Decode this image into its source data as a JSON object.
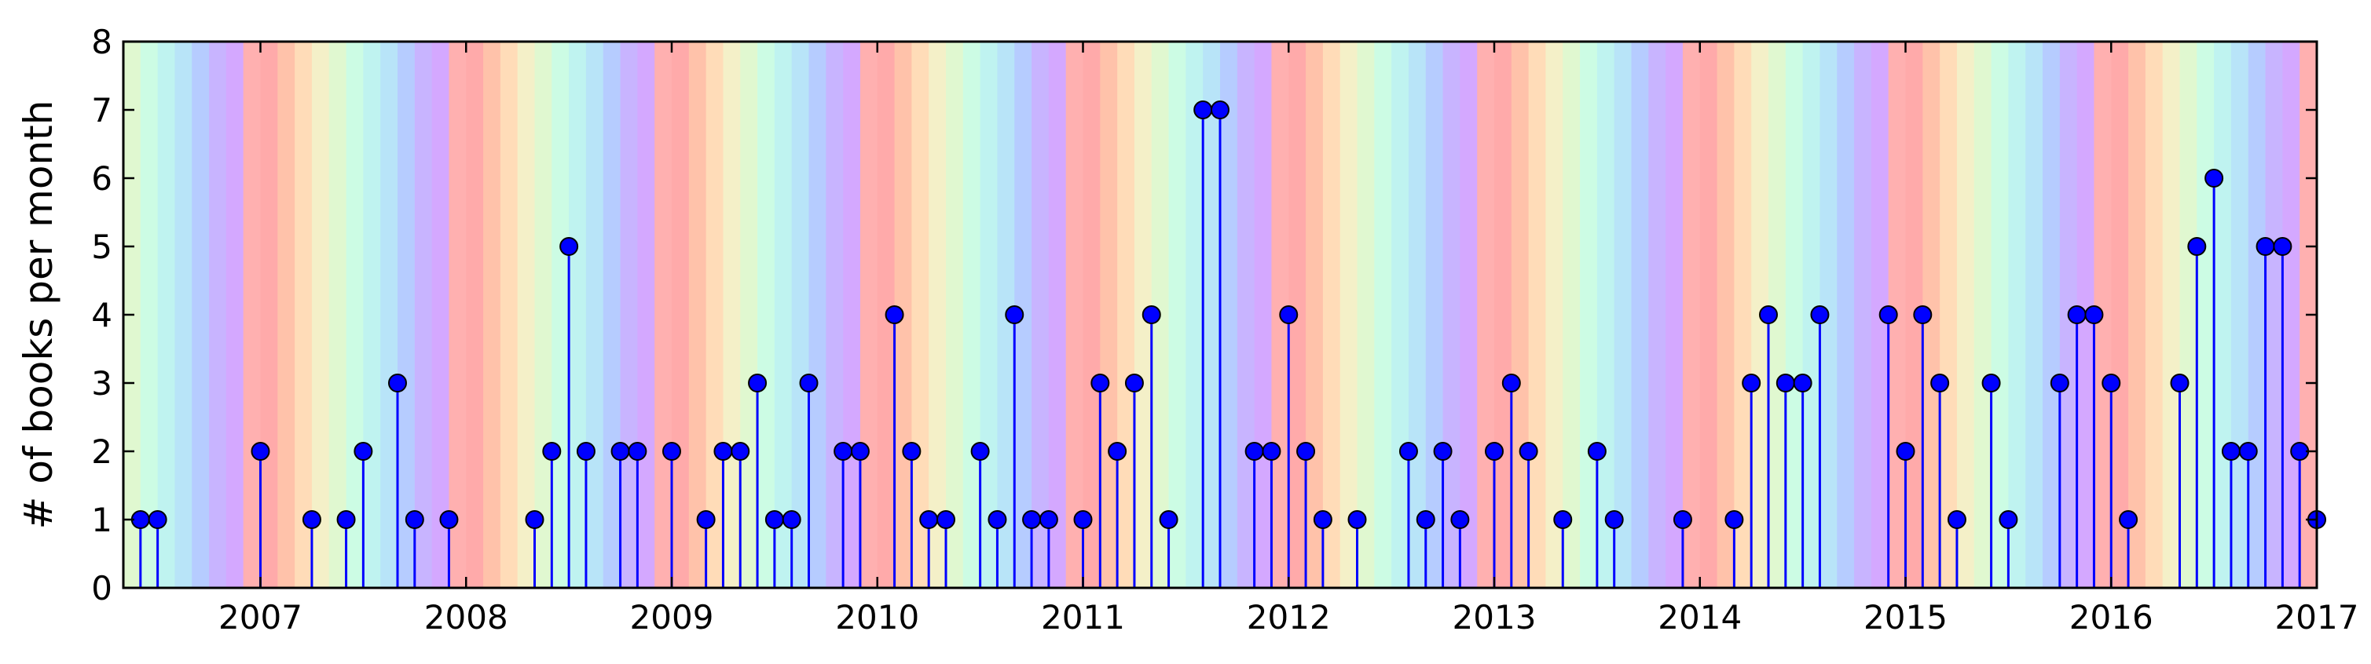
{
  "chart_data": {
    "type": "stem",
    "title": "",
    "xlabel": "",
    "ylabel": "# of books per month",
    "xlim": [
      "2006-05-01",
      "2017-01-01"
    ],
    "ylim": [
      0,
      8
    ],
    "grid": false,
    "x_tick_labels": [
      "2007",
      "2008",
      "2009",
      "2010",
      "2011",
      "2012",
      "2013",
      "2014",
      "2015",
      "2016",
      "2017"
    ],
    "y_tick_labels": [
      "0",
      "1",
      "2",
      "3",
      "4",
      "5",
      "6",
      "7",
      "8"
    ],
    "background_month_colors": [
      "#ffaaaa",
      "#ffc2aa",
      "#ffdcb8",
      "#f4f0c8",
      "#e0f8d0",
      "#ccfce4",
      "#bff3f0",
      "#b8e4f8",
      "#b6ccff",
      "#c8b4ff",
      "#d4a8ff",
      "#ffb0b0"
    ],
    "stem_color": "#0000ff",
    "marker_color": "#0000ff",
    "points": [
      {
        "x": "2006-06",
        "y": 1
      },
      {
        "x": "2006-07",
        "y": 1
      },
      {
        "x": "2007-01",
        "y": 2
      },
      {
        "x": "2007-04",
        "y": 1
      },
      {
        "x": "2007-06",
        "y": 1
      },
      {
        "x": "2007-07",
        "y": 2
      },
      {
        "x": "2007-09",
        "y": 3
      },
      {
        "x": "2007-10",
        "y": 1
      },
      {
        "x": "2007-12",
        "y": 1
      },
      {
        "x": "2008-05",
        "y": 1
      },
      {
        "x": "2008-06",
        "y": 2
      },
      {
        "x": "2008-07",
        "y": 5
      },
      {
        "x": "2008-08",
        "y": 2
      },
      {
        "x": "2008-10",
        "y": 2
      },
      {
        "x": "2008-11",
        "y": 2
      },
      {
        "x": "2009-01",
        "y": 2
      },
      {
        "x": "2009-03",
        "y": 1
      },
      {
        "x": "2009-04",
        "y": 2
      },
      {
        "x": "2009-05",
        "y": 2
      },
      {
        "x": "2009-06",
        "y": 3
      },
      {
        "x": "2009-07",
        "y": 1
      },
      {
        "x": "2009-08",
        "y": 1
      },
      {
        "x": "2009-09",
        "y": 3
      },
      {
        "x": "2009-11",
        "y": 2
      },
      {
        "x": "2009-12",
        "y": 2
      },
      {
        "x": "2010-02",
        "y": 4
      },
      {
        "x": "2010-03",
        "y": 2
      },
      {
        "x": "2010-04",
        "y": 1
      },
      {
        "x": "2010-05",
        "y": 1
      },
      {
        "x": "2010-07",
        "y": 2
      },
      {
        "x": "2010-08",
        "y": 1
      },
      {
        "x": "2010-09",
        "y": 4
      },
      {
        "x": "2010-10",
        "y": 1
      },
      {
        "x": "2010-11",
        "y": 1
      },
      {
        "x": "2011-01",
        "y": 1
      },
      {
        "x": "2011-02",
        "y": 3
      },
      {
        "x": "2011-03",
        "y": 2
      },
      {
        "x": "2011-04",
        "y": 3
      },
      {
        "x": "2011-05",
        "y": 4
      },
      {
        "x": "2011-06",
        "y": 1
      },
      {
        "x": "2011-08",
        "y": 7
      },
      {
        "x": "2011-09",
        "y": 7
      },
      {
        "x": "2011-11",
        "y": 2
      },
      {
        "x": "2011-12",
        "y": 2
      },
      {
        "x": "2012-01",
        "y": 4
      },
      {
        "x": "2012-02",
        "y": 2
      },
      {
        "x": "2012-03",
        "y": 1
      },
      {
        "x": "2012-05",
        "y": 1
      },
      {
        "x": "2012-08",
        "y": 2
      },
      {
        "x": "2012-09",
        "y": 1
      },
      {
        "x": "2012-10",
        "y": 2
      },
      {
        "x": "2012-11",
        "y": 1
      },
      {
        "x": "2013-01",
        "y": 2
      },
      {
        "x": "2013-02",
        "y": 3
      },
      {
        "x": "2013-03",
        "y": 2
      },
      {
        "x": "2013-05",
        "y": 1
      },
      {
        "x": "2013-07",
        "y": 2
      },
      {
        "x": "2013-08",
        "y": 1
      },
      {
        "x": "2013-12",
        "y": 1
      },
      {
        "x": "2014-03",
        "y": 1
      },
      {
        "x": "2014-04",
        "y": 3
      },
      {
        "x": "2014-05",
        "y": 4
      },
      {
        "x": "2014-06",
        "y": 3
      },
      {
        "x": "2014-07",
        "y": 3
      },
      {
        "x": "2014-08",
        "y": 4
      },
      {
        "x": "2014-12",
        "y": 4
      },
      {
        "x": "2015-01",
        "y": 2
      },
      {
        "x": "2015-02",
        "y": 4
      },
      {
        "x": "2015-03",
        "y": 3
      },
      {
        "x": "2015-04",
        "y": 1
      },
      {
        "x": "2015-06",
        "y": 3
      },
      {
        "x": "2015-07",
        "y": 1
      },
      {
        "x": "2015-10",
        "y": 3
      },
      {
        "x": "2015-11",
        "y": 4
      },
      {
        "x": "2015-12",
        "y": 4
      },
      {
        "x": "2016-01",
        "y": 3
      },
      {
        "x": "2016-02",
        "y": 1
      },
      {
        "x": "2016-05",
        "y": 3
      },
      {
        "x": "2016-06",
        "y": 5
      },
      {
        "x": "2016-07",
        "y": 6
      },
      {
        "x": "2016-08",
        "y": 2
      },
      {
        "x": "2016-09",
        "y": 2
      },
      {
        "x": "2016-10",
        "y": 5
      },
      {
        "x": "2016-11",
        "y": 5
      },
      {
        "x": "2016-12",
        "y": 2
      },
      {
        "x": "2017-01",
        "y": 1
      }
    ]
  }
}
